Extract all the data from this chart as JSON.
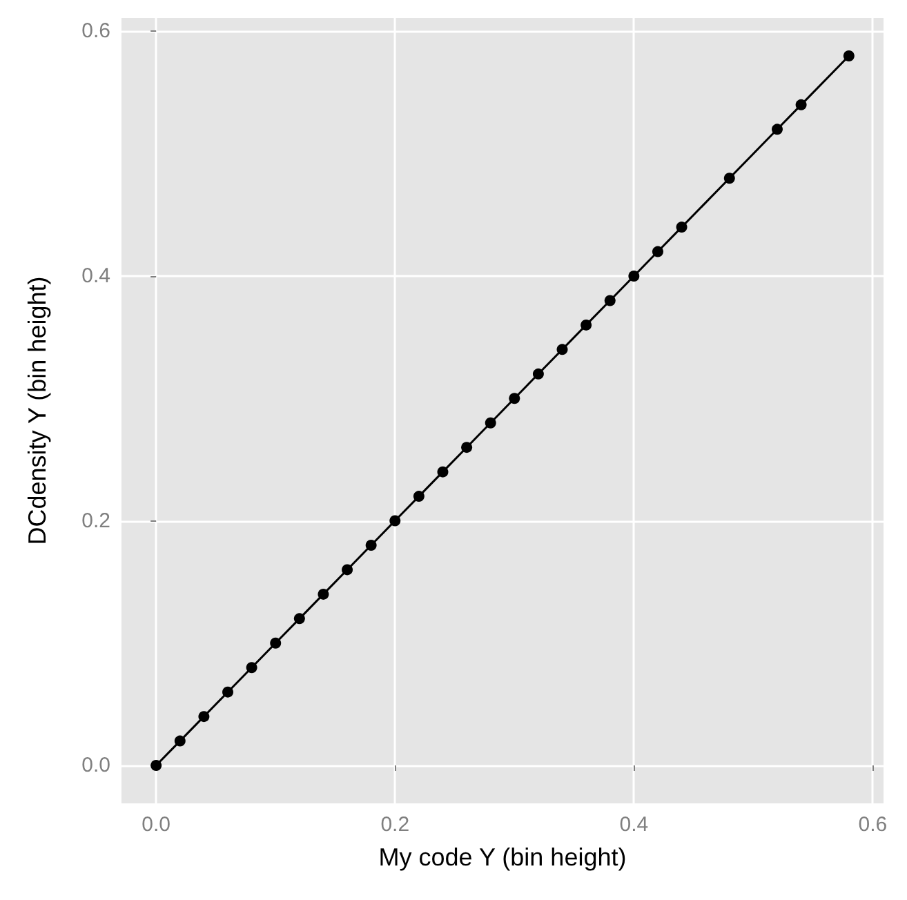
{
  "chart_data": {
    "type": "line",
    "xlabel": "My code Y (bin height)",
    "ylabel": "DCdensity Y (bin height)",
    "x": [
      0,
      0.02,
      0.04,
      0.06,
      0.08,
      0.1,
      0.12,
      0.14,
      0.16,
      0.18,
      0.2,
      0.22,
      0.24,
      0.26,
      0.28,
      0.3,
      0.32,
      0.34,
      0.36,
      0.38,
      0.4,
      0.42,
      0.44,
      0.48,
      0.52,
      0.54,
      0.58
    ],
    "series": [
      {
        "color": "#000000",
        "values": [
          0,
          0.02,
          0.04,
          0.06,
          0.08,
          0.1,
          0.12,
          0.14,
          0.16,
          0.18,
          0.2,
          0.22,
          0.24,
          0.26,
          0.28,
          0.3,
          0.32,
          0.34,
          0.36,
          0.38,
          0.4,
          0.42,
          0.44,
          0.48,
          0.52,
          0.54,
          0.58
        ]
      }
    ],
    "xlim": [
      -0.029,
      0.609
    ],
    "ylim": [
      -0.031,
      0.611
    ],
    "xticks": [
      {
        "value": 0,
        "label": "0.0"
      },
      {
        "value": 0.2,
        "label": "0.2"
      },
      {
        "value": 0.4,
        "label": "0.4"
      },
      {
        "value": 0.6,
        "label": "0.6"
      }
    ],
    "yticks": [
      {
        "value": 0,
        "label": "0.0"
      },
      {
        "value": 0.2,
        "label": "0.2"
      },
      {
        "value": 0.4,
        "label": "0.4"
      },
      {
        "value": 0.6,
        "label": "0.6"
      }
    ],
    "grid": true,
    "marker": "circle",
    "line_style": "solid"
  }
}
